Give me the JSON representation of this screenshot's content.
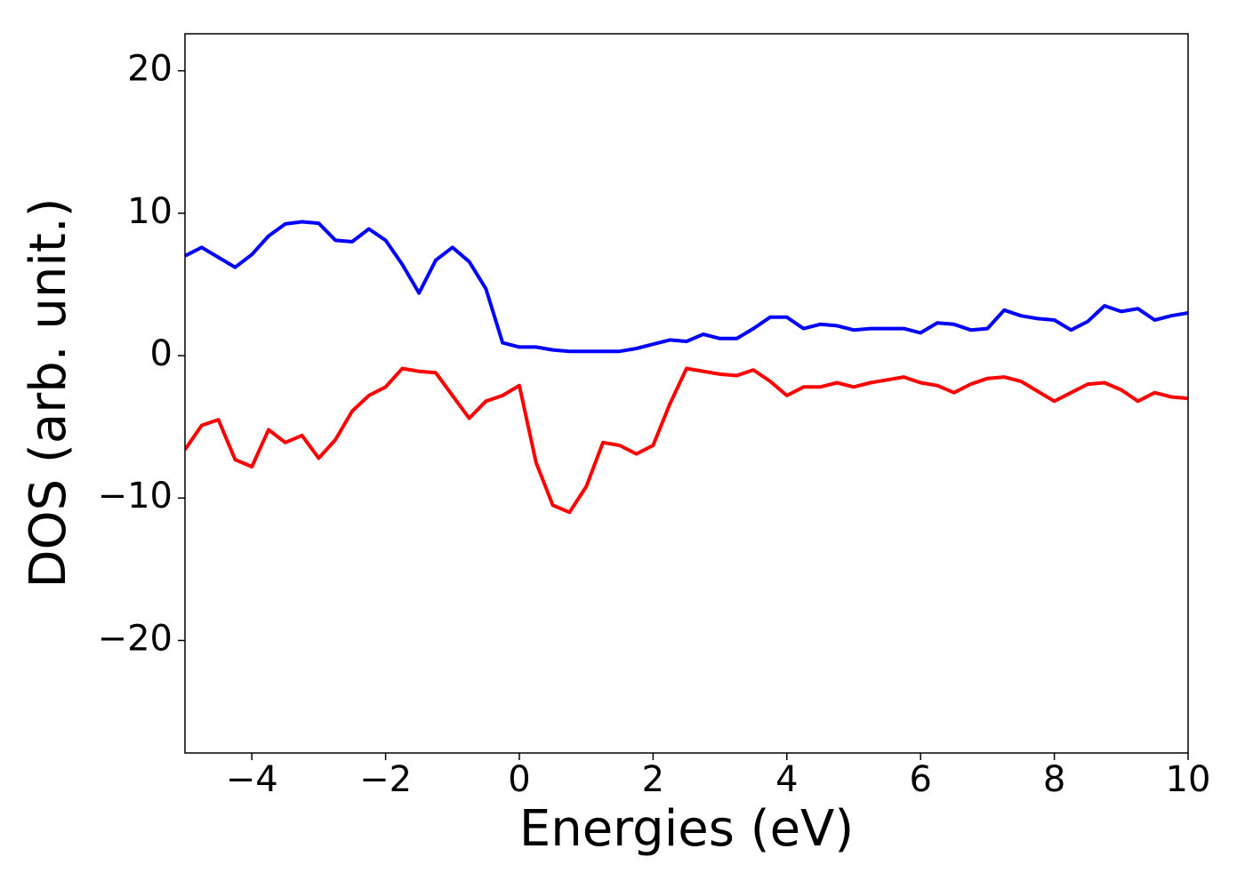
{
  "chart_data": {
    "type": "line",
    "x_label": "Energies (eV)",
    "y_label": "DOS (arb. unit.)",
    "x": [
      -5,
      -4.75,
      -4.5,
      -4.25,
      -4,
      -3.75,
      -3.5,
      -3.25,
      -3,
      -2.75,
      -2.5,
      -2.25,
      -2,
      -1.75,
      -1.5,
      -1.25,
      -1,
      -0.75,
      -0.5,
      -0.25,
      0,
      0.25,
      0.5,
      0.75,
      1,
      1.25,
      1.5,
      1.75,
      2,
      2.25,
      2.5,
      2.75,
      3,
      3.25,
      3.5,
      3.75,
      4,
      4.25,
      4.5,
      4.75,
      5,
      5.25,
      5.5,
      5.75,
      6,
      6.25,
      6.5,
      6.75,
      7,
      7.25,
      7.5,
      7.75,
      8,
      8.25,
      8.5,
      8.75,
      9,
      9.25,
      9.5,
      9.75,
      10
    ],
    "series": [
      {
        "color": "#0000ff",
        "values": [
          7.0,
          7.6,
          6.9,
          6.2,
          7.1,
          8.4,
          9.25,
          9.4,
          9.3,
          8.1,
          8.0,
          8.9,
          8.1,
          6.4,
          4.4,
          6.7,
          7.6,
          6.6,
          4.7,
          0.9,
          0.6,
          0.6,
          0.4,
          0.3,
          0.3,
          0.3,
          0.3,
          0.5,
          0.8,
          1.1,
          1.0,
          1.5,
          1.2,
          1.2,
          1.9,
          2.7,
          2.7,
          1.9,
          2.2,
          2.1,
          1.8,
          1.9,
          1.9,
          1.9,
          1.6,
          2.3,
          2.2,
          1.8,
          1.9,
          3.2,
          2.8,
          2.6,
          2.5,
          1.8,
          2.4,
          3.5,
          3.1,
          3.3,
          2.5,
          2.8,
          3.0
        ]
      },
      {
        "color": "#ff0000",
        "values": [
          -6.6,
          -4.9,
          -4.5,
          -7.3,
          -7.8,
          -5.2,
          -6.1,
          -5.6,
          -7.2,
          -5.9,
          -3.9,
          -2.8,
          -2.2,
          -0.9,
          -1.1,
          -1.2,
          -2.8,
          -4.4,
          -3.2,
          -2.8,
          -2.1,
          -7.5,
          -10.5,
          -11.0,
          -9.2,
          -6.1,
          -6.3,
          -6.9,
          -6.3,
          -3.4,
          -0.9,
          -1.1,
          -1.3,
          -1.4,
          -1.0,
          -1.8,
          -2.8,
          -2.2,
          -2.2,
          -1.9,
          -2.2,
          -1.9,
          -1.7,
          -1.5,
          -1.9,
          -2.1,
          -2.6,
          -2.0,
          -1.6,
          -1.5,
          -1.8,
          -2.5,
          -3.2,
          -2.6,
          -2.0,
          -1.9,
          -2.4,
          -3.2,
          -2.6,
          -2.9,
          -3.0
        ]
      }
    ],
    "xlim": [
      -5,
      10
    ],
    "xticks": [
      {
        "value": -4,
        "label": "−4"
      },
      {
        "value": -2,
        "label": "−2"
      },
      0,
      2,
      4,
      6,
      8,
      10
    ],
    "ylim": [
      -27.9,
      22.6
    ],
    "yticks": [
      {
        "value": -20,
        "label": "−20"
      },
      {
        "value": -10,
        "label": "−10"
      },
      0,
      10,
      20
    ]
  }
}
